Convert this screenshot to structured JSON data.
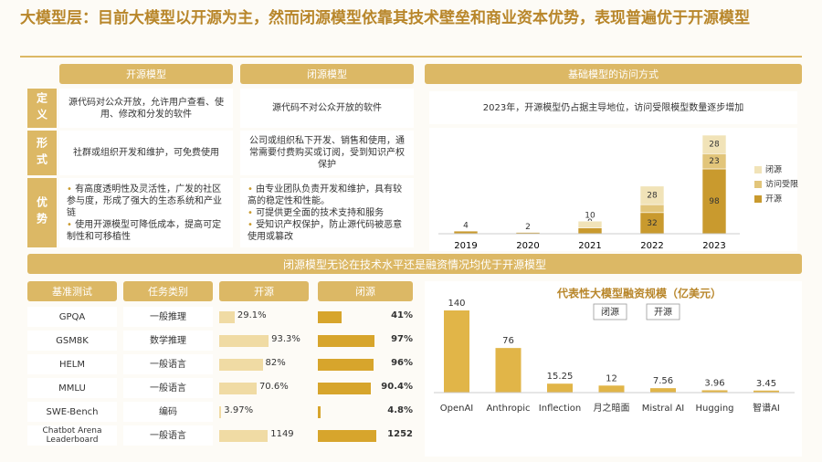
{
  "title": "大模型层：目前大模型以开源为主，然而闭源模型依靠其技术壁垒和商业资本优势，表现普遍优于开源模型",
  "comparison": {
    "headers": [
      "开源模型",
      "闭源模型"
    ],
    "rows": [
      {
        "label": "定义",
        "cells": [
          [
            "源代码对公众开放，允许用户查看、使用、修改和分发的软件"
          ],
          [
            "源代码不对公众开放的软件"
          ]
        ]
      },
      {
        "label": "形式",
        "cells": [
          [
            "社群或组织开发和维护，可免费使用"
          ],
          [
            "公司或组织私下开发、销售和使用，通常需要付费购买或订阅，受到知识产权保护"
          ]
        ]
      },
      {
        "label": "优势",
        "cells": [
          [
            "有高度透明性及灵活性，广发的社区参与度，形成了强大的生态系统和产业链",
            "使用开源模型可降低成本，提高可定制性和可移植性"
          ],
          [
            "由专业团队负责开发和维护，具有较高的稳定性和性能。",
            "可提供更全面的技术支持和服务",
            "受知识产权保护，防止源代码被恶意使用或篡改"
          ]
        ]
      }
    ]
  },
  "banner": "闭源模型无论在技术水平还是融资情况均优于开源模型",
  "benchmark": {
    "headers": [
      "基准测试",
      "任务类别",
      "开源",
      "闭源"
    ],
    "rows": [
      {
        "name": "GPQA",
        "task": "一般推理",
        "open": 29.1,
        "open_label": "29.1%",
        "closed": 41,
        "closed_label": "41%"
      },
      {
        "name": "GSM8K",
        "task": "数学推理",
        "open": 93.3,
        "open_label": "93.3%",
        "closed": 97,
        "closed_label": "97%"
      },
      {
        "name": "HELM",
        "task": "一般语言",
        "open": 82,
        "open_label": "82%",
        "closed": 96,
        "closed_label": "96%"
      },
      {
        "name": "MMLU",
        "task": "一般语言",
        "open": 70.6,
        "open_label": "70.6%",
        "closed": 90.4,
        "closed_label": "90.4%"
      },
      {
        "name": "SWE-Bench",
        "task": "编码",
        "open": 3.97,
        "open_label": "3.97%",
        "closed": 4.8,
        "closed_label": "4.8%"
      },
      {
        "name": "Chatbot Arena Leaderboard",
        "task": "一般语言",
        "open": 1149,
        "closed": 1252
      }
    ]
  },
  "chart_data": [
    {
      "type": "stacked_bar",
      "title": "基础模型的访问方式",
      "subtitle": "2023年，开源模型仍占据主导地位，访问受限模型数量逐步增加",
      "categories": [
        "2019",
        "2020",
        "2021",
        "2022",
        "2023"
      ],
      "series": [
        {
          "name": "开源",
          "color": "#c99a2e",
          "values": [
            4,
            2,
            9,
            32,
            98
          ]
        },
        {
          "name": "访问受限",
          "color": "#e2c57a",
          "values": [
            null,
            null,
            null,
            12,
            23
          ]
        },
        {
          "name": "闭源",
          "color": "#f1e3b8",
          "values": [
            null,
            null,
            10,
            28,
            28
          ]
        }
      ]
    },
    {
      "type": "bar",
      "title": "代表性大模型融资规模（亿美元）",
      "categories": [
        "OpenAI",
        "Anthropic",
        "Inflection",
        "月之暗面",
        "Mistral AI",
        "Hugging",
        "智谱AI"
      ],
      "values": [
        140,
        76,
        15.25,
        12,
        7.56,
        3.96,
        3.45
      ],
      "color": "#e1b548",
      "legend": [
        "闭源",
        "开源"
      ]
    }
  ]
}
